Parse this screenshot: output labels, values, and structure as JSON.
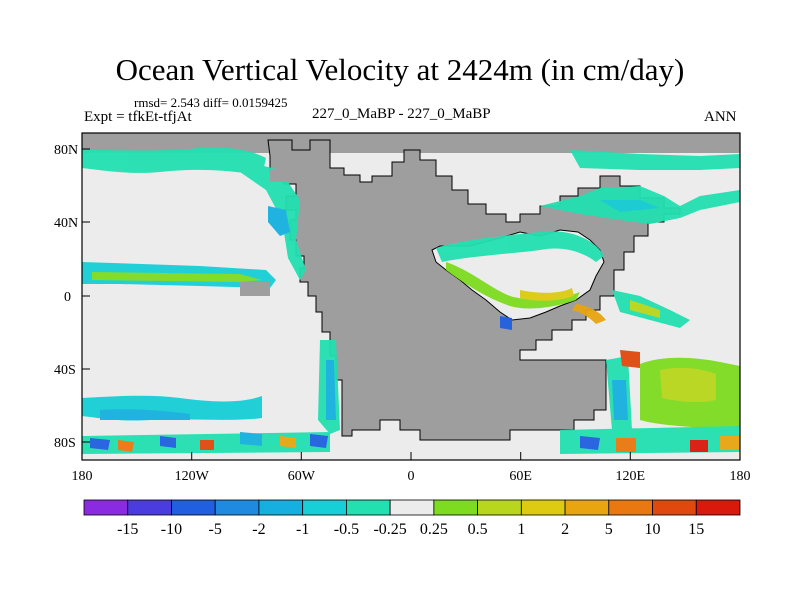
{
  "header": {
    "title": "Ocean Vertical Velocity at 2424m (in cm/day)",
    "stats": "rmsd= 2.543  diff= 0.0159425",
    "expt": "Expt = tfkEt-tfjAt",
    "center": "227_0_MaBP - 227_0_MaBP",
    "season": "ANN"
  },
  "chart_data": {
    "type": "heatmap",
    "title": "Ocean Vertical Velocity at 2424m (in cm/day)",
    "x_ticks": [
      "180",
      "120W",
      "60W",
      "0",
      "60E",
      "120E",
      "180"
    ],
    "y_ticks": [
      "80N",
      "40N",
      "0",
      "40S",
      "80S"
    ],
    "xlim": [
      -180,
      180
    ],
    "ylim": [
      -90,
      90
    ],
    "colorbar": {
      "levels": [
        "-15",
        "-10",
        "-5",
        "-2",
        "-1",
        "-0.5",
        "-0.25",
        "0.25",
        "0.5",
        "1",
        "2",
        "5",
        "10",
        "15"
      ],
      "colors": [
        "#8a2be2",
        "#4b3ce0",
        "#1f5fe0",
        "#1e8ae0",
        "#16b0e0",
        "#17cfd6",
        "#22e0b0",
        "#ececec",
        "#7ddc1f",
        "#b8d61c",
        "#dccb10",
        "#e8a510",
        "#e8780f",
        "#e0480e",
        "#d8190c"
      ]
    },
    "colors": {
      "land": "#9e9e9e",
      "near_zero": "#ececec"
    }
  }
}
